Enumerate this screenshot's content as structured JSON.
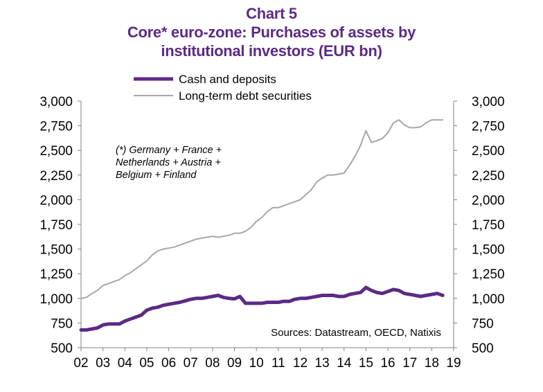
{
  "chart_data": {
    "type": "line",
    "title": "Chart 5",
    "subtitle_lines": [
      "Core* euro-zone: Purchases of assets by",
      "institutional investors (EUR bn)"
    ],
    "xlabel": "",
    "ylabel": "",
    "ylim": [
      500,
      3000
    ],
    "xlim": [
      2,
      19
    ],
    "y_ticks": [
      "500",
      "750",
      "1,000",
      "1,250",
      "1,500",
      "1,750",
      "2,000",
      "2,250",
      "2,500",
      "2,750",
      "3,000"
    ],
    "y_tick_values": [
      500,
      750,
      1000,
      1250,
      1500,
      1750,
      2000,
      2250,
      2500,
      2750,
      3000
    ],
    "x_ticks": [
      "02",
      "03",
      "04",
      "05",
      "06",
      "07",
      "08",
      "09",
      "10",
      "11",
      "12",
      "13",
      "14",
      "15",
      "16",
      "17",
      "18",
      "19"
    ],
    "x_tick_values": [
      2,
      3,
      4,
      5,
      6,
      7,
      8,
      9,
      10,
      11,
      12,
      13,
      14,
      15,
      16,
      17,
      18,
      19
    ],
    "grid": false,
    "legend_position": "top-center",
    "note_lines": [
      "(*) Germany  + France +",
      "Netherlands  + Austria +",
      "Belgium + Finland"
    ],
    "source": "Sources:  Datastream,  OECD, Natixis",
    "series": [
      {
        "name": "Cash and deposits",
        "color": "#5b2a86",
        "x": [
          2.0,
          2.25,
          2.5,
          2.75,
          3.0,
          3.25,
          3.5,
          3.75,
          4.0,
          4.25,
          4.5,
          4.75,
          5.0,
          5.25,
          5.5,
          5.75,
          6.0,
          6.25,
          6.5,
          6.75,
          7.0,
          7.25,
          7.5,
          7.75,
          8.0,
          8.25,
          8.5,
          8.75,
          9.0,
          9.25,
          9.5,
          9.75,
          10.0,
          10.25,
          10.5,
          10.75,
          11.0,
          11.25,
          11.5,
          11.75,
          12.0,
          12.25,
          12.5,
          12.75,
          13.0,
          13.25,
          13.5,
          13.75,
          14.0,
          14.25,
          14.5,
          14.75,
          15.0,
          15.25,
          15.5,
          15.75,
          16.0,
          16.25,
          16.5,
          16.75,
          17.0,
          17.25,
          17.5,
          17.75,
          18.0,
          18.25,
          18.5
        ],
        "values": [
          680,
          680,
          690,
          700,
          730,
          740,
          740,
          740,
          770,
          790,
          810,
          830,
          880,
          900,
          910,
          930,
          940,
          950,
          960,
          975,
          990,
          1000,
          1000,
          1010,
          1020,
          1030,
          1010,
          1000,
          995,
          1020,
          950,
          950,
          950,
          950,
          960,
          960,
          960,
          970,
          970,
          990,
          1000,
          1000,
          1010,
          1020,
          1030,
          1030,
          1030,
          1020,
          1020,
          1040,
          1050,
          1060,
          1110,
          1080,
          1060,
          1050,
          1070,
          1090,
          1080,
          1050,
          1040,
          1030,
          1020,
          1030,
          1040,
          1050,
          1030
        ]
      },
      {
        "name": "Long-term debt securities",
        "color": "#a6a6a6",
        "x": [
          2.0,
          2.25,
          2.5,
          2.75,
          3.0,
          3.25,
          3.5,
          3.75,
          4.0,
          4.25,
          4.5,
          4.75,
          5.0,
          5.25,
          5.5,
          5.75,
          6.0,
          6.25,
          6.5,
          6.75,
          7.0,
          7.25,
          7.5,
          7.75,
          8.0,
          8.25,
          8.5,
          8.75,
          9.0,
          9.25,
          9.5,
          9.75,
          10.0,
          10.25,
          10.5,
          10.75,
          11.0,
          11.25,
          11.5,
          11.75,
          12.0,
          12.25,
          12.5,
          12.75,
          13.0,
          13.25,
          13.5,
          13.75,
          14.0,
          14.25,
          14.5,
          14.75,
          15.0,
          15.25,
          15.5,
          15.75,
          16.0,
          16.25,
          16.5,
          16.75,
          17.0,
          17.25,
          17.5,
          17.75,
          18.0,
          18.25,
          18.5
        ],
        "values": [
          1000,
          1010,
          1050,
          1080,
          1130,
          1150,
          1170,
          1190,
          1230,
          1260,
          1300,
          1340,
          1380,
          1440,
          1480,
          1500,
          1510,
          1520,
          1540,
          1560,
          1580,
          1600,
          1610,
          1620,
          1630,
          1620,
          1630,
          1640,
          1660,
          1660,
          1680,
          1720,
          1780,
          1820,
          1880,
          1920,
          1920,
          1940,
          1960,
          1980,
          2000,
          2050,
          2100,
          2180,
          2220,
          2250,
          2250,
          2260,
          2270,
          2350,
          2440,
          2550,
          2700,
          2580,
          2600,
          2620,
          2680,
          2780,
          2810,
          2760,
          2730,
          2730,
          2740,
          2780,
          2810,
          2810,
          2810
        ]
      }
    ]
  }
}
